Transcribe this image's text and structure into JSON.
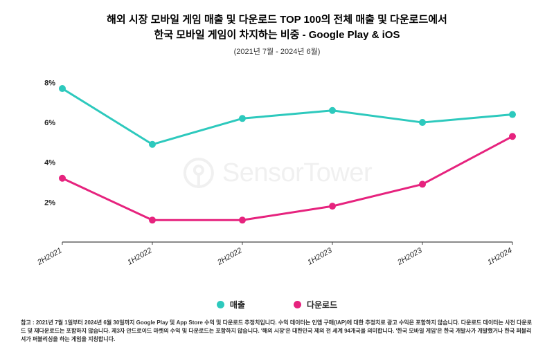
{
  "title_line1": "해외 시장 모바일 게임 매출 및 다운로드 TOP 100의 전체 매출 및 다운로드에서",
  "title_line2": "한국 모바일 게임이 차지하는 비중 - Google Play & iOS",
  "subtitle": "(2021년 7월 - 2024년 6월)",
  "title_fontsize": 15,
  "chart": {
    "type": "line",
    "background_color": "#ffffff",
    "categories": [
      "2H2021",
      "1H2022",
      "2H2022",
      "1H2023",
      "2H2023",
      "1H2024"
    ],
    "y_ticks": [
      2,
      4,
      6,
      8
    ],
    "y_tick_suffix": "%",
    "ylim": [
      0,
      8.5
    ],
    "series": [
      {
        "name": "매출",
        "color": "#2dc9bd",
        "values": [
          7.7,
          4.9,
          6.2,
          6.6,
          6.0,
          6.4
        ],
        "marker": "circle",
        "marker_size": 5,
        "line_width": 3
      },
      {
        "name": "다운로드",
        "color": "#e6237e",
        "values": [
          3.2,
          1.1,
          1.1,
          1.8,
          2.9,
          5.3
        ],
        "marker": "circle",
        "marker_size": 5,
        "line_width": 3
      }
    ],
    "axis_line_color": "#444444",
    "x_label_rotation": -30
  },
  "watermark_text": "SensorTower",
  "legend": {
    "items": [
      {
        "label": "매출",
        "color": "#2dc9bd"
      },
      {
        "label": "다운로드",
        "color": "#e6237e"
      }
    ]
  },
  "footnote": "참고 : 2021년 7월 1일부터 2024년 6월 30일까지 Google Play 및 App Store 수익 및 다운로드 추정치입니다. 수익 데이터는 인앱 구매(IAP)에 대한 추정치로 광고 수익은 포함하지 않습니다. 다운로드 데이터는 사전 다운로드 및 재다운로드는 포함하지 않습니다. 제3자 안드로이드 마켓의 수익 및 다운로드는 포함하지 않습니다. '해외 시장'은 대한민국 제외 전 세계 94개국을 의미합니다. '한국 모바일 게임'은 한국 개발사가 개발했거나 한국 퍼블리셔가 퍼블리싱을 하는 게임을 지칭합니다."
}
